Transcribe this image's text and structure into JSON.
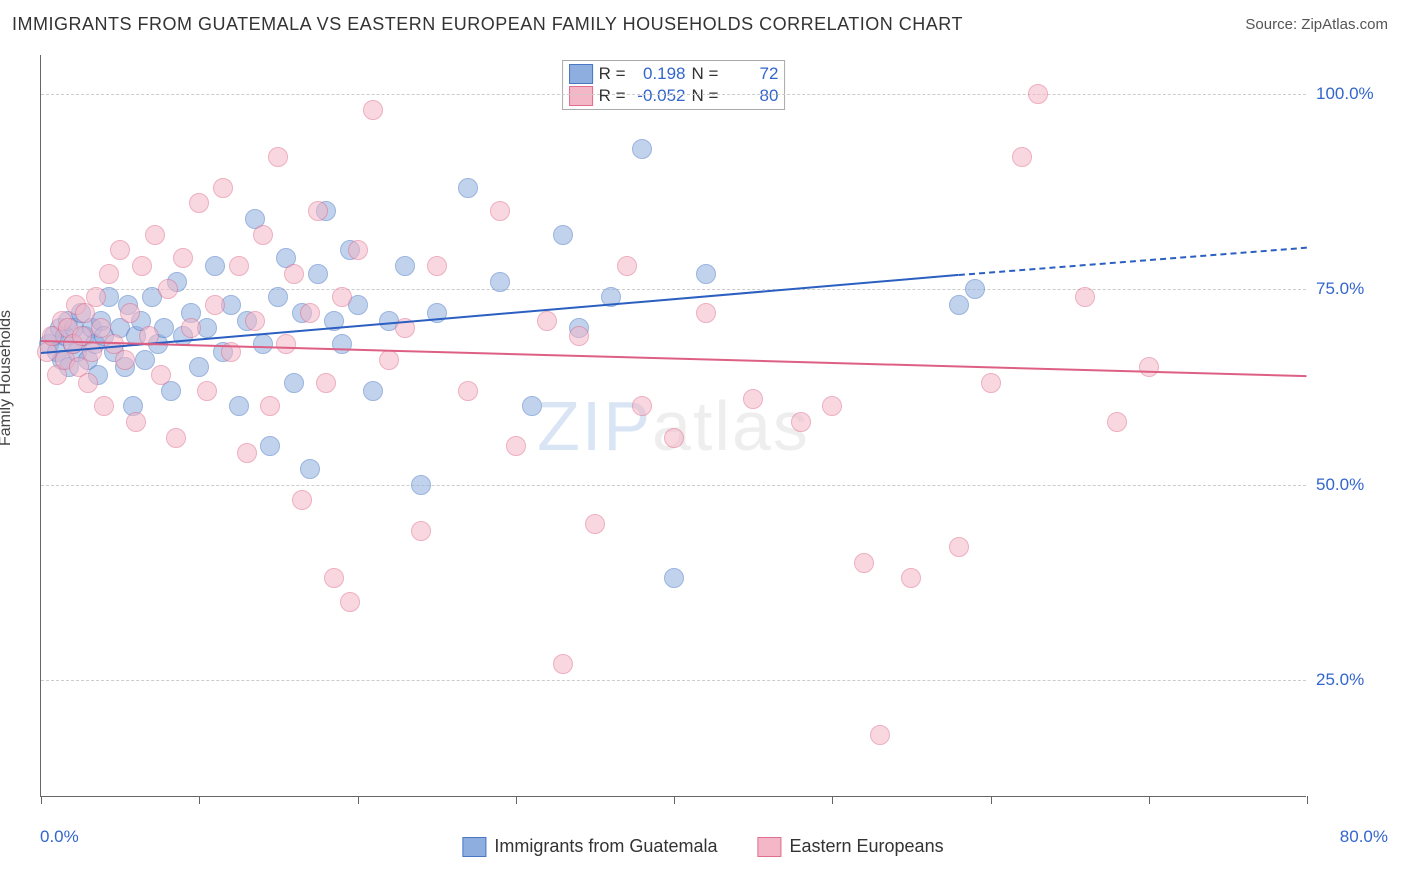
{
  "title": "IMMIGRANTS FROM GUATEMALA VS EASTERN EUROPEAN FAMILY HOUSEHOLDS CORRELATION CHART",
  "source_prefix": "Source: ",
  "source": "ZipAtlas.com",
  "ylabel": "Family Households",
  "watermark": {
    "bold": "ZIP",
    "rest": "atlas"
  },
  "legend": {
    "r_label": "R =",
    "n_label": "N ="
  },
  "xaxis": {
    "min": 0,
    "max": 80,
    "min_label": "0.0%",
    "max_label": "80.0%",
    "ticks": [
      0,
      10,
      20,
      30,
      40,
      50,
      60,
      70,
      80
    ],
    "show_tick_labels": false
  },
  "yaxis": {
    "min": 10,
    "max": 105,
    "grid_lines": [
      25,
      50,
      75,
      100
    ],
    "labels": [
      "25.0%",
      "50.0%",
      "75.0%",
      "100.0%"
    ]
  },
  "style": {
    "background": "#ffffff",
    "grid_color": "#cccccc",
    "axis_color": "#666666",
    "tick_label_color": "#3366cc",
    "point_radius": 9,
    "point_opacity": 0.55,
    "trend_width": 2
  },
  "series": [
    {
      "name": "Immigrants from Guatemala",
      "fill": "#8faee0",
      "stroke": "#4a77c4",
      "line": "#2b5fc1",
      "r": "0.198",
      "n": "72",
      "trend": {
        "x0": 0,
        "y0": 67,
        "x1_solid": 58,
        "y1_solid": 77,
        "x1_ext": 80,
        "y1_ext": 80.5
      },
      "points": [
        [
          0.5,
          68
        ],
        [
          0.8,
          69
        ],
        [
          1,
          67
        ],
        [
          1.2,
          70
        ],
        [
          1.3,
          66
        ],
        [
          1.5,
          69
        ],
        [
          1.7,
          71
        ],
        [
          1.8,
          65
        ],
        [
          2,
          68
        ],
        [
          2.1,
          70
        ],
        [
          2.3,
          67
        ],
        [
          2.5,
          72
        ],
        [
          2.8,
          69
        ],
        [
          3,
          66
        ],
        [
          3.2,
          70
        ],
        [
          3.4,
          68
        ],
        [
          3.6,
          64
        ],
        [
          3.8,
          71
        ],
        [
          4,
          69
        ],
        [
          4.3,
          74
        ],
        [
          4.6,
          67
        ],
        [
          5,
          70
        ],
        [
          5.3,
          65
        ],
        [
          5.5,
          73
        ],
        [
          5.8,
          60
        ],
        [
          6,
          69
        ],
        [
          6.3,
          71
        ],
        [
          6.6,
          66
        ],
        [
          7,
          74
        ],
        [
          7.4,
          68
        ],
        [
          7.8,
          70
        ],
        [
          8.2,
          62
        ],
        [
          8.6,
          76
        ],
        [
          9,
          69
        ],
        [
          9.5,
          72
        ],
        [
          10,
          65
        ],
        [
          10.5,
          70
        ],
        [
          11,
          78
        ],
        [
          11.5,
          67
        ],
        [
          12,
          73
        ],
        [
          12.5,
          60
        ],
        [
          13,
          71
        ],
        [
          13.5,
          84
        ],
        [
          14,
          68
        ],
        [
          14.5,
          55
        ],
        [
          15,
          74
        ],
        [
          15.5,
          79
        ],
        [
          16,
          63
        ],
        [
          16.5,
          72
        ],
        [
          17,
          52
        ],
        [
          17.5,
          77
        ],
        [
          18,
          85
        ],
        [
          18.5,
          71
        ],
        [
          19,
          68
        ],
        [
          19.5,
          80
        ],
        [
          20,
          73
        ],
        [
          21,
          62
        ],
        [
          22,
          71
        ],
        [
          23,
          78
        ],
        [
          24,
          50
        ],
        [
          25,
          72
        ],
        [
          27,
          88
        ],
        [
          29,
          76
        ],
        [
          31,
          60
        ],
        [
          33,
          82
        ],
        [
          34,
          70
        ],
        [
          36,
          74
        ],
        [
          38,
          93
        ],
        [
          40,
          38
        ],
        [
          42,
          77
        ],
        [
          58,
          73
        ],
        [
          59,
          75
        ]
      ]
    },
    {
      "name": "Eastern Europeans",
      "fill": "#f4b7c8",
      "stroke": "#e06f8d",
      "line": "#de5f84",
      "r": "-0.052",
      "n": "80",
      "trend": {
        "x0": 0,
        "y0": 68.5,
        "x1_solid": 80,
        "y1_solid": 64,
        "x1_ext": 80,
        "y1_ext": 64
      },
      "points": [
        [
          0.4,
          67
        ],
        [
          0.7,
          69
        ],
        [
          1,
          64
        ],
        [
          1.3,
          71
        ],
        [
          1.5,
          66
        ],
        [
          1.7,
          70
        ],
        [
          2,
          68
        ],
        [
          2.2,
          73
        ],
        [
          2.4,
          65
        ],
        [
          2.6,
          69
        ],
        [
          2.8,
          72
        ],
        [
          3,
          63
        ],
        [
          3.2,
          67
        ],
        [
          3.5,
          74
        ],
        [
          3.8,
          70
        ],
        [
          4,
          60
        ],
        [
          4.3,
          77
        ],
        [
          4.6,
          68
        ],
        [
          5,
          80
        ],
        [
          5.3,
          66
        ],
        [
          5.6,
          72
        ],
        [
          6,
          58
        ],
        [
          6.4,
          78
        ],
        [
          6.8,
          69
        ],
        [
          7.2,
          82
        ],
        [
          7.6,
          64
        ],
        [
          8,
          75
        ],
        [
          8.5,
          56
        ],
        [
          9,
          79
        ],
        [
          9.5,
          70
        ],
        [
          10,
          86
        ],
        [
          10.5,
          62
        ],
        [
          11,
          73
        ],
        [
          11.5,
          88
        ],
        [
          12,
          67
        ],
        [
          12.5,
          78
        ],
        [
          13,
          54
        ],
        [
          13.5,
          71
        ],
        [
          14,
          82
        ],
        [
          14.5,
          60
        ],
        [
          15,
          92
        ],
        [
          15.5,
          68
        ],
        [
          16,
          77
        ],
        [
          16.5,
          48
        ],
        [
          17,
          72
        ],
        [
          17.5,
          85
        ],
        [
          18,
          63
        ],
        [
          18.5,
          38
        ],
        [
          19,
          74
        ],
        [
          19.5,
          35
        ],
        [
          20,
          80
        ],
        [
          21,
          98
        ],
        [
          22,
          66
        ],
        [
          23,
          70
        ],
        [
          24,
          44
        ],
        [
          25,
          78
        ],
        [
          27,
          62
        ],
        [
          29,
          85
        ],
        [
          30,
          55
        ],
        [
          32,
          71
        ],
        [
          33,
          27
        ],
        [
          34,
          69
        ],
        [
          35,
          45
        ],
        [
          37,
          78
        ],
        [
          38,
          60
        ],
        [
          40,
          56
        ],
        [
          42,
          72
        ],
        [
          45,
          61
        ],
        [
          48,
          58
        ],
        [
          50,
          60
        ],
        [
          52,
          40
        ],
        [
          53,
          18
        ],
        [
          55,
          38
        ],
        [
          58,
          42
        ],
        [
          60,
          63
        ],
        [
          62,
          92
        ],
        [
          63,
          100
        ],
        [
          66,
          74
        ],
        [
          68,
          58
        ],
        [
          70,
          65
        ]
      ]
    }
  ]
}
